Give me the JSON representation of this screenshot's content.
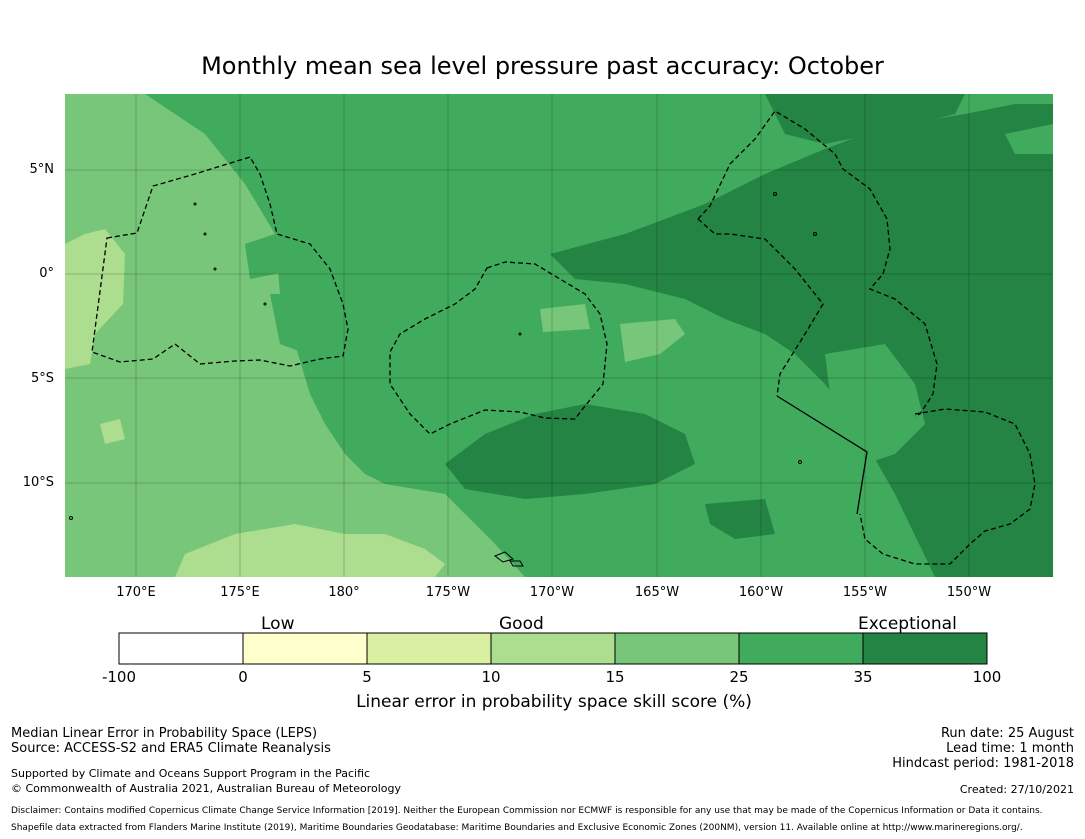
{
  "title": "Monthly mean sea level pressure past accuracy: October",
  "map": {
    "lat_labels": [
      "5°N",
      "0°",
      "5°S",
      "10°S"
    ],
    "lon_labels": [
      "170°E",
      "175°E",
      "180°",
      "175°W",
      "170°W",
      "165°W",
      "160°W",
      "155°W",
      "150°W"
    ],
    "legend_colors": {
      "-100_0": "#ffffff",
      "0_5": "#ffffcc",
      "5_10": "#d9f0a3",
      "10_15": "#addd8e",
      "15_25": "#78c679",
      "25_35": "#41ab5d",
      "35_100": "#238443"
    }
  },
  "colorbar": {
    "category_labels": [
      "Low",
      "Good",
      "Exceptional"
    ],
    "ticks": [
      "-100",
      "0",
      "5",
      "10",
      "15",
      "25",
      "35",
      "100"
    ],
    "xlabel": "Linear error in probability space skill score (%)"
  },
  "footer": {
    "left1": "Median Linear Error in Probability Space (LEPS)",
    "left2": "Source: ACCESS-S2 and ERA5 Climate Reanalysis",
    "left3": "Supported by Climate and Oceans Support Program in the Pacific",
    "left4": "© Commonwealth of Australia 2021, Australian Bureau of Meteorology",
    "right1": "Run date: 25 August",
    "right2": "Lead time: 1 month",
    "right3": "Hindcast period: 1981-2018",
    "created": "Created: 27/10/2021",
    "disclaimer1": "Disclaimer: Contains modified Copernicus Climate Change Service Information [2019]. Neither the European Commission nor ECMWF is responsible for any use that may be made of the Copernicus Information or Data it contains.",
    "disclaimer2": "Shapefile data extracted from Flanders Marine Institute (2019), Maritime Boundaries Geodatabase: Maritime Boundaries and Exclusive Economic Zones (200NM), version 11. Available online at http://www.marineregions.org/."
  }
}
